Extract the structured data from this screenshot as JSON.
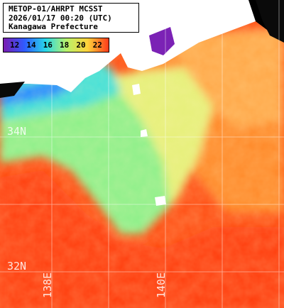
{
  "header": {
    "line1": "METOP-01/AHRPT MCSST",
    "line2": "2026/01/17 00:20 (UTC)",
    "line3": "Kanagawa Prefecture"
  },
  "scale": {
    "labels": [
      "12",
      "14",
      "16",
      "18",
      "20",
      "22"
    ],
    "colors": [
      "#7a1cb0",
      "#2f5bff",
      "#27d7e8",
      "#b8f26a",
      "#ffd23a",
      "#ff3a1a"
    ]
  },
  "grid": {
    "lat_labels": [
      "34N",
      "32N"
    ],
    "lon_labels": [
      "138E",
      "140E"
    ]
  }
}
